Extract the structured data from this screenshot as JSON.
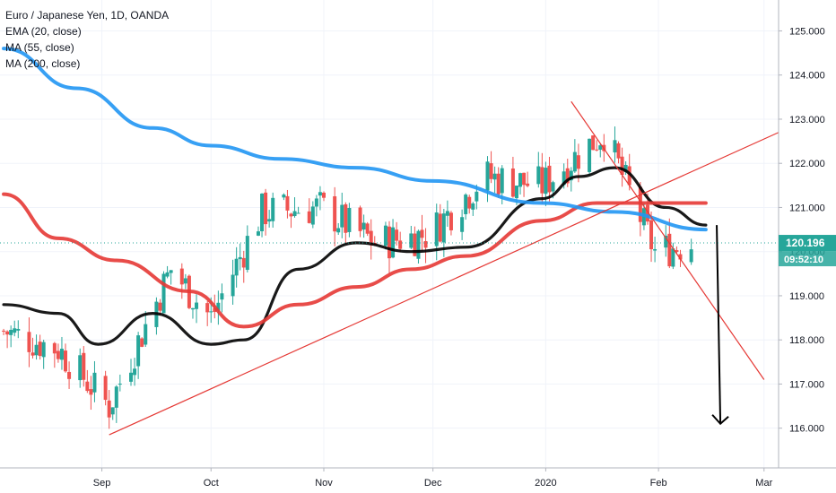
{
  "legend": {
    "symbol": "Euro / Japanese Yen, 1D, OANDA",
    "ema": "EMA (20, close)",
    "ma55": "MA (55, close)",
    "ma200": "MA (200, close)"
  },
  "price_axis": {
    "ticks": [
      "125.000",
      "124.000",
      "123.000",
      "122.000",
      "121.000",
      "120.000",
      "119.000",
      "118.000",
      "117.000",
      "116.000"
    ],
    "last_price": "120.196",
    "countdown": "09:52:10"
  },
  "time_axis": {
    "labels": [
      "Sep",
      "Oct",
      "Nov",
      "Dec",
      "2020",
      "Feb",
      "Mar"
    ]
  },
  "colors": {
    "bull": "#26a69a",
    "bear": "#ef5350",
    "ema20": "#000000",
    "ma55": "#e53935",
    "ma200": "#2196f3",
    "trendline": "#e53935",
    "arrow": "#000000",
    "label_bg": "#26a69a"
  },
  "chart_data": {
    "type": "line",
    "title": "Euro / Japanese Yen, 1D, OANDA",
    "ylim": [
      115.1,
      125.7
    ],
    "x_range": [
      "2019-08-04",
      "2020-03-05"
    ],
    "grid": true,
    "legend_position": "top-left",
    "candles_trend": {
      "x": [
        "2019-08-05",
        "2019-08-20",
        "2019-09-03",
        "2019-09-20",
        "2019-10-01",
        "2019-10-15",
        "2019-10-31",
        "2019-11-15",
        "2019-11-30",
        "2019-12-15",
        "2019-12-31",
        "2020-01-17",
        "2020-01-31",
        "2020-02-10"
      ],
      "close": [
        118.2,
        117.8,
        116.5,
        119.6,
        118.5,
        120.9,
        121.0,
        120.2,
        120.4,
        121.7,
        121.5,
        122.7,
        120.0,
        120.196
      ]
    },
    "series": [
      {
        "name": "EMA (20, close)",
        "x": [
          "2019-08-05",
          "2019-08-20",
          "2019-08-31",
          "2019-09-15",
          "2019-10-01",
          "2019-10-10",
          "2019-10-25",
          "2019-11-10",
          "2019-11-25",
          "2019-12-10",
          "2019-12-31",
          "2020-01-10",
          "2020-01-20",
          "2020-02-03",
          "2020-02-14"
        ],
        "values": [
          118.8,
          118.6,
          117.9,
          118.6,
          117.9,
          118.0,
          119.6,
          120.2,
          120.0,
          120.1,
          121.2,
          121.7,
          121.9,
          121.0,
          120.6
        ]
      },
      {
        "name": "MA (55, close)",
        "x": [
          "2019-08-05",
          "2019-08-20",
          "2019-09-05",
          "2019-09-25",
          "2019-10-10",
          "2019-10-25",
          "2019-11-10",
          "2019-11-25",
          "2019-12-10",
          "2019-12-31",
          "2020-01-15",
          "2020-02-01",
          "2020-02-14"
        ],
        "values": [
          121.3,
          120.3,
          119.8,
          119.1,
          118.3,
          118.8,
          119.2,
          119.6,
          119.9,
          120.7,
          121.1,
          121.1,
          121.1
        ]
      },
      {
        "name": "MA (200, close)",
        "x": [
          "2019-08-05",
          "2019-08-25",
          "2019-09-15",
          "2019-10-01",
          "2019-10-20",
          "2019-11-10",
          "2019-12-01",
          "2019-12-31",
          "2020-01-20",
          "2020-02-14"
        ],
        "values": [
          124.6,
          123.7,
          122.8,
          122.4,
          122.1,
          121.9,
          121.6,
          121.1,
          120.9,
          120.5
        ]
      }
    ],
    "annotations": [
      {
        "type": "trendline",
        "from": [
          "2019-09-03",
          115.85
        ],
        "to": [
          "2020-03-05",
          122.7
        ]
      },
      {
        "type": "trendline",
        "from": [
          "2020-01-08",
          123.4
        ],
        "to": [
          "2020-03-01",
          117.1
        ]
      },
      {
        "type": "arrow",
        "from": [
          "2020-02-17",
          120.6
        ],
        "to": [
          "2020-02-18",
          116.1
        ]
      }
    ]
  }
}
